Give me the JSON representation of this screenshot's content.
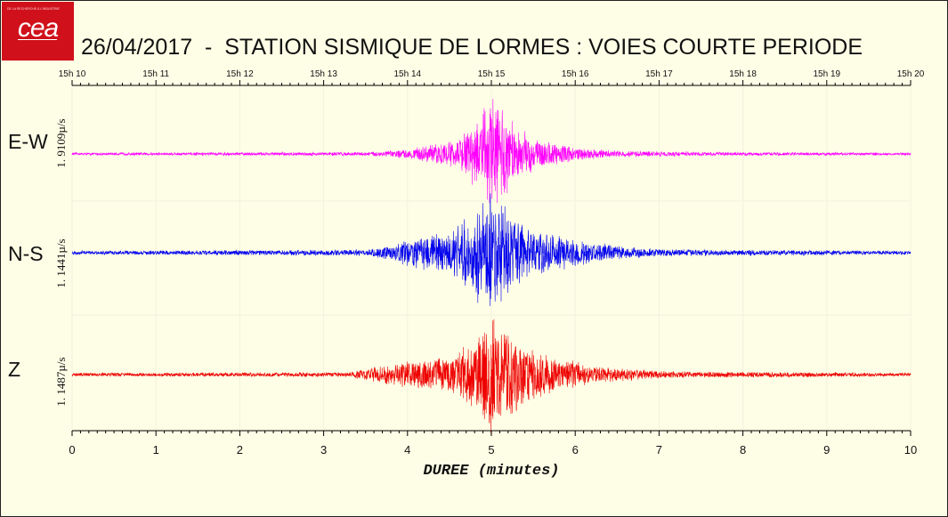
{
  "header": {
    "logo_text": "cea",
    "logo_tagline": "DE LA RECHERCHE À L'INDUSTRIE",
    "title": "26/04/2017  -  STATION SISMIQUE DE LORMES : VOIES COURTE PERIODE"
  },
  "colors": {
    "EW": "#ff00ff",
    "NS": "#0000ee",
    "Z": "#ee0000",
    "axis": "#000000",
    "grid": "#f2f2de",
    "background": "#fefee6"
  },
  "chart_data": {
    "type": "line",
    "title": "26/04/2017  -  STATION SISMIQUE DE LORMES : VOIES COURTE PERIODE",
    "xlabel": "DUREE  (minutes)",
    "xlim": [
      0,
      10
    ],
    "x_ticks": [
      "0",
      "1",
      "2",
      "3",
      "4",
      "5",
      "6",
      "7",
      "8",
      "9",
      "10"
    ],
    "top_ticks": [
      "15h 10",
      "15h 11",
      "15h 12",
      "15h 13",
      "15h 14",
      "15h 15",
      "15h 16",
      "15h 17",
      "15h 18",
      "15h 19",
      "15h 20"
    ],
    "grid": true,
    "series": [
      {
        "name": "E-W",
        "scale": "1. 9109µ/s",
        "envelope": [
          [
            0,
            0.02
          ],
          [
            3.5,
            0.03
          ],
          [
            4.0,
            0.07
          ],
          [
            4.6,
            0.22
          ],
          [
            4.9,
            0.65
          ],
          [
            5.0,
            1.0
          ],
          [
            5.1,
            0.8
          ],
          [
            5.3,
            0.4
          ],
          [
            5.6,
            0.22
          ],
          [
            6.0,
            0.1
          ],
          [
            6.5,
            0.05
          ],
          [
            7.5,
            0.03
          ],
          [
            10,
            0.02
          ]
        ]
      },
      {
        "name": "N-S",
        "scale": "1. 1441µ/s",
        "envelope": [
          [
            0,
            0.03
          ],
          [
            3.5,
            0.05
          ],
          [
            3.8,
            0.12
          ],
          [
            4.0,
            0.22
          ],
          [
            4.5,
            0.35
          ],
          [
            4.8,
            0.75
          ],
          [
            5.0,
            1.0
          ],
          [
            5.2,
            0.7
          ],
          [
            5.5,
            0.4
          ],
          [
            6.0,
            0.22
          ],
          [
            6.5,
            0.12
          ],
          [
            7.0,
            0.06
          ],
          [
            10,
            0.03
          ]
        ]
      },
      {
        "name": "Z",
        "scale": "1. 1487µ/s",
        "envelope": [
          [
            0,
            0.03
          ],
          [
            3.3,
            0.04
          ],
          [
            3.6,
            0.14
          ],
          [
            4.0,
            0.24
          ],
          [
            4.5,
            0.3
          ],
          [
            4.8,
            0.6
          ],
          [
            5.0,
            1.0
          ],
          [
            5.2,
            0.8
          ],
          [
            5.4,
            0.5
          ],
          [
            5.8,
            0.28
          ],
          [
            6.3,
            0.15
          ],
          [
            7.0,
            0.06
          ],
          [
            10,
            0.03
          ]
        ]
      }
    ]
  }
}
